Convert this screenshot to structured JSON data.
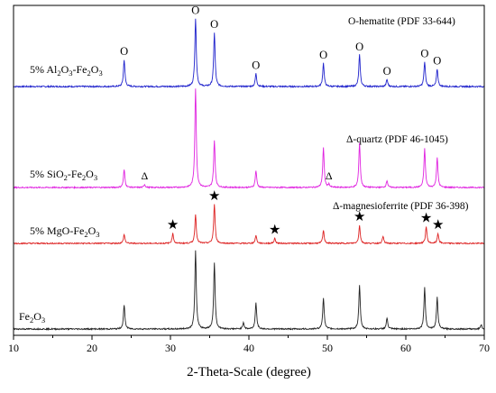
{
  "chart_data": {
    "type": "line",
    "xlabel": "2-Theta-Scale (degree)",
    "ylabel": "",
    "xlim": [
      10,
      70
    ],
    "xticks": [
      10,
      20,
      30,
      40,
      50,
      60,
      70
    ],
    "y_axis_shown": false,
    "grid": false,
    "legend": "none",
    "series": [
      {
        "name": "5% Al₂O₃-Fe₂O₃",
        "label": {
          "base": "5% Al",
          "s1": "2",
          "m1": "O",
          "s2": "3",
          "m2": "-Fe",
          "s3": "2",
          "m3": "O",
          "s4": "3"
        },
        "color": "#1f22cc",
        "offset": 0.0,
        "peaks": [
          {
            "x": 24.1,
            "h": 0.23,
            "mark": "O"
          },
          {
            "x": 33.2,
            "h": 0.58,
            "mark": "O"
          },
          {
            "x": 35.6,
            "h": 0.46,
            "mark": "O"
          },
          {
            "x": 40.9,
            "h": 0.11,
            "mark": "O"
          },
          {
            "x": 49.5,
            "h": 0.2,
            "mark": "O"
          },
          {
            "x": 54.1,
            "h": 0.27,
            "mark": "O"
          },
          {
            "x": 57.6,
            "h": 0.06,
            "mark": "O"
          },
          {
            "x": 62.4,
            "h": 0.21,
            "mark": "O"
          },
          {
            "x": 64.0,
            "h": 0.15,
            "mark": "O"
          }
        ]
      },
      {
        "name": "5% SiO₂-Fe₂O₃",
        "label": {
          "base": "5% SiO",
          "s1": "2",
          "m1": "-Fe",
          "s2": "2",
          "m2": "O",
          "s3": "3"
        },
        "color": "#e023e0",
        "offset": 0.0,
        "peaks": [
          {
            "x": 24.1,
            "h": 0.18
          },
          {
            "x": 26.7,
            "h": 0.03,
            "mark": "Δ"
          },
          {
            "x": 33.2,
            "h": 1.0
          },
          {
            "x": 35.6,
            "h": 0.47
          },
          {
            "x": 40.9,
            "h": 0.17
          },
          {
            "x": 49.5,
            "h": 0.4
          },
          {
            "x": 50.2,
            "h": 0.03,
            "mark": "Δ"
          },
          {
            "x": 54.1,
            "h": 0.45
          },
          {
            "x": 57.6,
            "h": 0.07
          },
          {
            "x": 62.4,
            "h": 0.39
          },
          {
            "x": 64.0,
            "h": 0.3
          }
        ]
      },
      {
        "name": "5% MgO-Fe₂O₃",
        "label": {
          "base": "5% MgO-Fe",
          "s1": "2",
          "m1": "O",
          "s2": "3"
        },
        "color": "#dd2222",
        "offset": 0.0,
        "peaks": [
          {
            "x": 24.1,
            "h": 0.09
          },
          {
            "x": 30.3,
            "h": 0.1,
            "mark": "★"
          },
          {
            "x": 33.2,
            "h": 0.29
          },
          {
            "x": 35.6,
            "h": 0.39,
            "mark": "★"
          },
          {
            "x": 40.9,
            "h": 0.08
          },
          {
            "x": 43.3,
            "h": 0.05,
            "mark": "★"
          },
          {
            "x": 49.5,
            "h": 0.13
          },
          {
            "x": 54.1,
            "h": 0.18,
            "mark": "★"
          },
          {
            "x": 57.1,
            "h": 0.07
          },
          {
            "x": 62.6,
            "h": 0.17,
            "mark": "★"
          },
          {
            "x": 64.1,
            "h": 0.1,
            "mark": "★"
          }
        ]
      },
      {
        "name": "Fe₂O₃",
        "label": {
          "base": "Fe",
          "s1": "2",
          "m1": "O",
          "s2": "3"
        },
        "color": "#222222",
        "offset": 0.0,
        "peaks": [
          {
            "x": 24.1,
            "h": 0.22
          },
          {
            "x": 33.2,
            "h": 0.72
          },
          {
            "x": 35.6,
            "h": 0.61
          },
          {
            "x": 39.3,
            "h": 0.06
          },
          {
            "x": 40.9,
            "h": 0.24
          },
          {
            "x": 49.5,
            "h": 0.29
          },
          {
            "x": 54.1,
            "h": 0.4
          },
          {
            "x": 57.6,
            "h": 0.1
          },
          {
            "x": 62.4,
            "h": 0.38
          },
          {
            "x": 64.0,
            "h": 0.29
          },
          {
            "x": 69.6,
            "h": 0.04
          }
        ]
      }
    ],
    "annotations": [
      {
        "text": "O-hematite (PDF 33-644)"
      },
      {
        "text": "Δ-quartz (PDF 46-1045)"
      },
      {
        "text": "Δ-magnesioferrite (PDF 36-398)"
      }
    ]
  }
}
